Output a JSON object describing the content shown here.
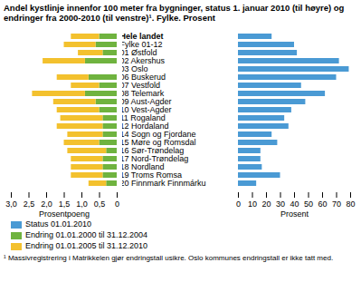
{
  "chart_data": [
    {
      "type": "bar",
      "orientation": "horizontal",
      "stacked": true,
      "title": "Andel kystlinje innenfor 100 meter fra bygninger, status 1. januar 2010 (til høyre) og endringer fra 2000-2010 (til venstre)¹. Fylke. Prosent",
      "xlabel": "Prosentpoeng",
      "categories": [
        "Hele landet",
        "Fylke 01-12",
        "01 Østfold",
        "02 Akershus",
        "03 Oslo",
        "06 Buskerud",
        "07 Vestfold",
        "08 Telemark",
        "09 Aust-Agder",
        "10 Vest-Agder",
        "11 Rogaland",
        "12 Hordaland",
        "14 Sogn og Fjordane",
        "15 Møre og Romsdal",
        "16 Sør-Trøndelag",
        "17 Nord-Trøndelag",
        "18 Nordland",
        "19 Troms Romsa",
        "20 Finnmark Finnmárku"
      ],
      "series": [
        {
          "name": "Endring 01.01.2000 til 31.12.2004",
          "color": "#6fb33f",
          "values": [
            0.5,
            0.6,
            0.4,
            0.9,
            null,
            0.8,
            0.5,
            0.9,
            0.6,
            0.5,
            0.4,
            0.4,
            0.4,
            0.5,
            0.3,
            0.4,
            0.4,
            0.4,
            0.3
          ]
        },
        {
          "name": "Endring 01.01.2005 til 31.12.2010",
          "color": "#f3c12e",
          "values": [
            0.8,
            0.9,
            0.7,
            1.2,
            null,
            0.9,
            0.8,
            1.5,
            1.2,
            1.2,
            1.2,
            1.3,
            1.0,
            1.0,
            1.1,
            0.9,
            0.9,
            0.9,
            0.5
          ]
        }
      ],
      "xlim": [
        3,
        0
      ],
      "xticks": [
        {
          "value": 3,
          "label": "3,0"
        },
        {
          "value": 2.5,
          "label": "2,5"
        },
        {
          "value": 2,
          "label": "2,0"
        },
        {
          "value": 1.5,
          "label": "1,5"
        },
        {
          "value": 1,
          "label": "1,0"
        },
        {
          "value": 0.5,
          "label": "0,5"
        },
        0
      ]
    },
    {
      "type": "bar",
      "orientation": "horizontal",
      "xlabel": "Prosent",
      "footnote": "¹ Massivregistrering i Matrikkelen gjør endringstall usikre. Oslo kommunes endringstall er ikke tatt med.",
      "categories": [
        "Hele landet",
        "Fylke 01-12",
        "01 Østfold",
        "02 Akershus",
        "03 Oslo",
        "06 Buskerud",
        "07 Vestfold",
        "08 Telemark",
        "09 Aust-Agder",
        "10 Vest-Agder",
        "11 Rogaland",
        "12 Hordaland",
        "14 Sogn og Fjordane",
        "15 Møre og Romsdal",
        "16 Sør-Trøndelag",
        "17 Nord-Trøndelag",
        "18 Nordland",
        "19 Troms Romsa",
        "20 Finnmark Finnmárku"
      ],
      "series": [
        {
          "name": "Status 01.01.2010",
          "color": "#4a9ad4",
          "values": [
            24,
            40,
            42,
            72,
            79,
            70,
            45,
            62,
            48,
            38,
            33,
            36,
            24,
            28,
            16,
            16,
            17,
            30,
            13
          ]
        }
      ],
      "xlim": [
        0,
        80
      ],
      "xticks": [
        0,
        10,
        20,
        30,
        40,
        50,
        60,
        70,
        80
      ]
    }
  ]
}
